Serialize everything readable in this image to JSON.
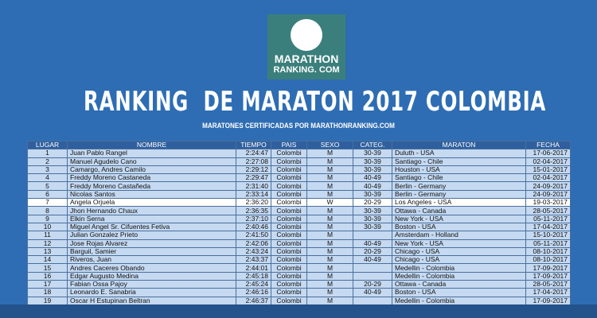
{
  "logo": {
    "line1": "MARATHON",
    "line2": "RANKING. COM"
  },
  "header": {
    "title": "RANKING  DE MARATON 2017 COLOMBIA",
    "subtitle": "MARATONES CERTIFICADAS POR MARATHONRANKING.COM"
  },
  "table": {
    "headers": [
      "LUGAR",
      "NOMBRE",
      "TIEMPO",
      "PAIS",
      "SEXO",
      "CATEG.",
      "MARATON",
      "FECHA"
    ],
    "rows": [
      [
        "1",
        "Juan Pablo Rangel",
        "2:24:47",
        "Colombi",
        "M",
        "30-39",
        "Duluth - USA",
        "17-06-2017"
      ],
      [
        "2",
        "Manuel Agudelo Cano",
        "2:27:08",
        "Colombi",
        "M",
        "30-39",
        "Santiago - Chile",
        "02-04-2017"
      ],
      [
        "3",
        "Camargo, Andres Camilo",
        "2:29:12",
        "Colombi",
        "M",
        "30-39",
        "Houston - USA",
        "15-01-2017"
      ],
      [
        "4",
        "Freddy Moreno Castaneda",
        "2:29:47",
        "Colombi",
        "M",
        "40-49",
        "Santiago - Chile",
        "02-04-2017"
      ],
      [
        "5",
        "Freddy Moreno Castañeda",
        "2:31:40",
        "Colombi",
        "M",
        "40-49",
        "Berlin - Germany",
        "24-09-2017"
      ],
      [
        "6",
        "Nicolas Santos",
        "2:33:14",
        "Colombi",
        "M",
        "30-39",
        "Berlin - Germany",
        "24-09-2017"
      ],
      [
        "7",
        "Angela Orjuela",
        "2:36:20",
        "Colombi",
        "W",
        "20-29",
        "Los Angeles - USA",
        "19-03-2017"
      ],
      [
        "8",
        "Jhon Hernando Chaux",
        "2:36:35",
        "Colombi",
        "M",
        "30-39",
        "Ottawa - Canada",
        "28-05-2017"
      ],
      [
        "9",
        "Elkin Serna",
        "2:37:10",
        "Colombi",
        "M",
        "30-39",
        "New York - USA",
        "05-11-2017"
      ],
      [
        "10",
        "Miguel Angel Sr. Cifuentes Fetiva",
        "2:40:46",
        "Colombi",
        "M",
        "30-39",
        "Boston - USA",
        "17-04-2017"
      ],
      [
        "11",
        "Julian Gonzalez Prieto",
        "2:41:50",
        "Colombi",
        "M",
        null,
        "Amsterdam - Holland",
        "15-10-2017"
      ],
      [
        "12",
        "Jose Rojas Alvarez",
        "2:42:06",
        "Colombi",
        "M",
        "40-49",
        "New York - USA",
        "05-11-2017"
      ],
      [
        "13",
        "Barguil, Samier",
        "2:43:24",
        "Colombi",
        "M",
        "20-29",
        "Chicago - USA",
        "08-10-2017"
      ],
      [
        "14",
        "Riveros, Juan",
        "2:43:37",
        "Colombi",
        "M",
        "40-49",
        "Chicago - USA",
        "08-10-2017"
      ],
      [
        "15",
        "Andres Caceres Obando",
        "2:44:01",
        "Colombi",
        "M",
        null,
        "Medellin - Colombia",
        "17-09-2017"
      ],
      [
        "16",
        "Edgar Augusto Medina",
        "2:45:18",
        "Colombi",
        "M",
        null,
        "Medellin - Colombia",
        "17-09-2017"
      ],
      [
        "17",
        "Fabian Ossa Pajoy",
        "2:45:24",
        "Colombi",
        "M",
        "20-29",
        "Ottawa - Canada",
        "28-05-2017"
      ],
      [
        "18",
        "Leonardo E. Sanabria",
        "2:46:16",
        "Colombi",
        "M",
        "40-49",
        "Boston - USA",
        "17-04-2017"
      ],
      [
        "19",
        "Oscar H Estupinan Beltran",
        "2:46:37",
        "Colombi",
        "M",
        null,
        "Medellin - Colombia",
        "17-09-2017"
      ]
    ]
  }
}
